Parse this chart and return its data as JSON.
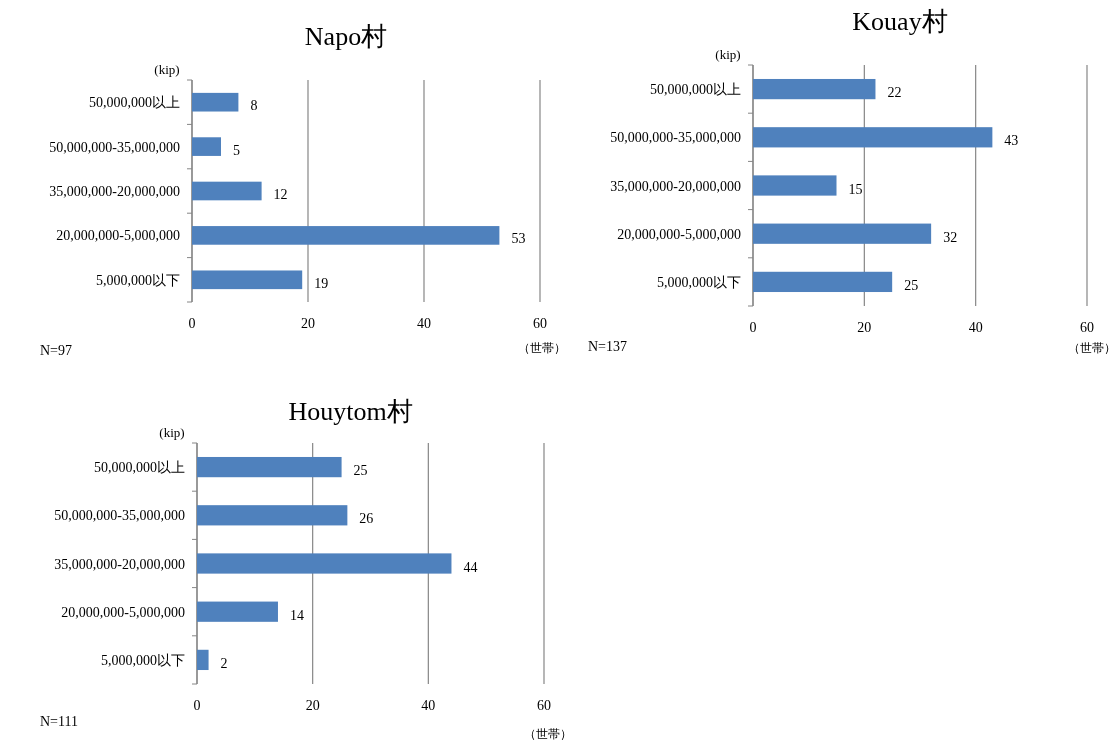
{
  "chart_data": [
    {
      "type": "bar",
      "orientation": "horizontal",
      "title": "Napo村",
      "ylabel": "(kip)",
      "xlabel": "（世帯）",
      "categories": [
        "50,000,000以上",
        "50,000,000-35,000,000",
        "35,000,000-20,000,000",
        "20,000,000-5,000,000",
        "5,000,000以下"
      ],
      "values": [
        8,
        5,
        12,
        53,
        19
      ],
      "color": "#4f81bd",
      "xlim": [
        0,
        60
      ],
      "xticks": [
        0,
        20,
        40,
        60
      ],
      "grid": "x",
      "data_labels": true,
      "annotations": [
        "N=97"
      ]
    },
    {
      "type": "bar",
      "orientation": "horizontal",
      "title": "Kouay村",
      "ylabel": "(kip)",
      "xlabel": "（世帯）",
      "categories": [
        "50,000,000以上",
        "50,000,000-35,000,000",
        "35,000,000-20,000,000",
        "20,000,000-5,000,000",
        "5,000,000以下"
      ],
      "values": [
        22,
        43,
        15,
        32,
        25
      ],
      "color": "#4f81bd",
      "xlim": [
        0,
        60
      ],
      "xticks": [
        0,
        20,
        40,
        60
      ],
      "grid": "x",
      "data_labels": true,
      "annotations": [
        "N=137"
      ]
    },
    {
      "type": "bar",
      "orientation": "horizontal",
      "title": "Houytom村",
      "ylabel": "(kip)",
      "xlabel": "（世帯）",
      "categories": [
        "50,000,000以上",
        "50,000,000-35,000,000",
        "35,000,000-20,000,000",
        "20,000,000-5,000,000",
        "5,000,000以下"
      ],
      "values": [
        25,
        26,
        44,
        14,
        2
      ],
      "color": "#4f81bd",
      "xlim": [
        0,
        60
      ],
      "xticks": [
        0,
        20,
        40,
        60
      ],
      "grid": "x",
      "data_labels": true,
      "annotations": [
        "N=111"
      ]
    }
  ]
}
